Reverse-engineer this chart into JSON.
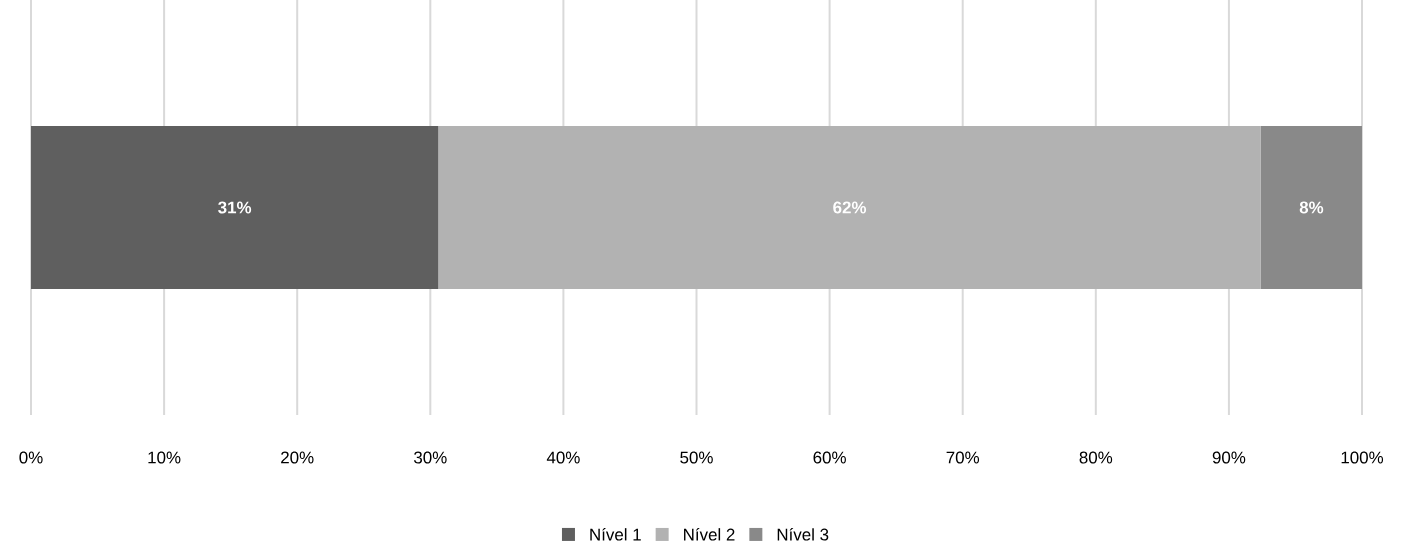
{
  "chart_data": {
    "type": "bar",
    "orientation": "horizontal",
    "stacked": true,
    "categories": [
      null
    ],
    "series": [
      {
        "name": "Nível 1",
        "color": "#5f5f5f",
        "values": [
          30.6
        ],
        "value_labels": [
          "31%"
        ]
      },
      {
        "name": "Nível 2",
        "color": "#b2b2b2",
        "values": [
          61.8
        ],
        "value_labels": [
          "62%"
        ]
      },
      {
        "name": "Nível 3",
        "color": "#898989",
        "values": [
          7.6
        ],
        "value_labels": [
          "8%"
        ]
      }
    ],
    "xlim": [
      0,
      100
    ],
    "xticks": [
      {
        "value": 0,
        "label": "0%"
      },
      {
        "value": 10,
        "label": "10%"
      },
      {
        "value": 20,
        "label": "20%"
      },
      {
        "value": 30,
        "label": "30%"
      },
      {
        "value": 40,
        "label": "40%"
      },
      {
        "value": 50,
        "label": "50%"
      },
      {
        "value": 60,
        "label": "60%"
      },
      {
        "value": 70,
        "label": "70%"
      },
      {
        "value": 80,
        "label": "80%"
      },
      {
        "value": 90,
        "label": "90%"
      },
      {
        "value": 100,
        "label": "100%"
      }
    ],
    "grid": "x",
    "legend": "bottom",
    "tick_labels": "x"
  }
}
